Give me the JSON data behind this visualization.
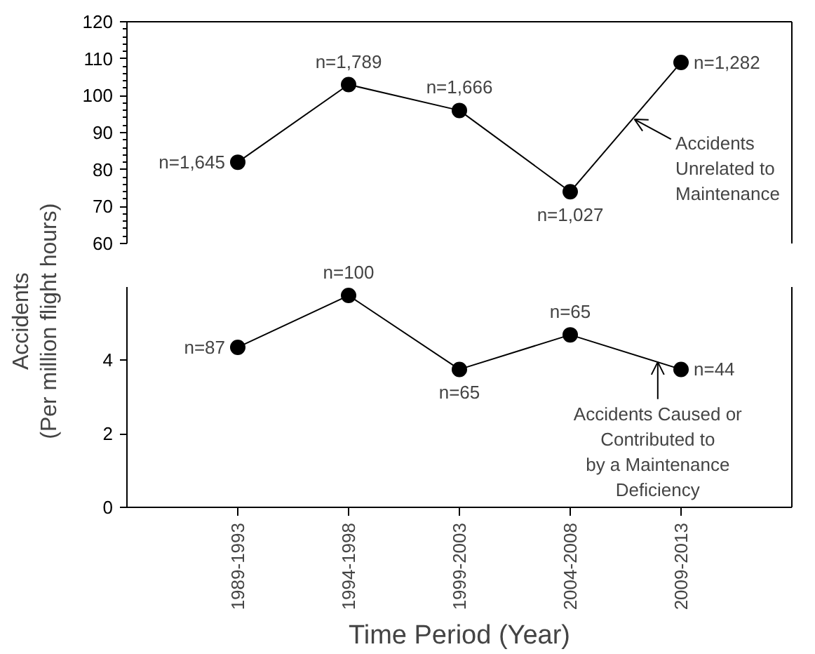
{
  "chart_data": [
    {
      "type": "line",
      "categories": [
        null,
        null,
        null,
        null,
        null
      ],
      "values": [
        82,
        103,
        96,
        74,
        109
      ],
      "color": "#000000",
      "marker": "circle",
      "ylim": [
        60,
        120
      ],
      "yticks": [
        60,
        70,
        80,
        90,
        100,
        110,
        120
      ],
      "tick_labels": "y",
      "grid": false,
      "annotations": [
        "n=1,645",
        "n=1,789",
        "n=1,666",
        "n=1,027",
        "n=1,282",
        "Accidents\nUnrelated to\nMaintenance"
      ]
    },
    {
      "type": "line",
      "categories": [
        "1989-1993",
        "1994-1998",
        "1999-2003",
        "2004-2008",
        "2009-2013"
      ],
      "values": [
        4.35,
        5.76,
        3.75,
        4.69,
        3.75
      ],
      "color": "#000000",
      "marker": "circle",
      "ylim": [
        0,
        6
      ],
      "yticks": [
        0,
        2,
        4
      ],
      "grid": false,
      "xlabel": "Time Period (Year)",
      "ylabel": "Accidents\n(Per million flight hours)",
      "annotations": [
        "n=87",
        "n=100",
        "n=65",
        "n=65",
        "n=44",
        {
          "text": "Accidents Caused or\nContributed to\nby a Maintenance\nDeficiency",
          "y": 3.95
        }
      ]
    }
  ]
}
